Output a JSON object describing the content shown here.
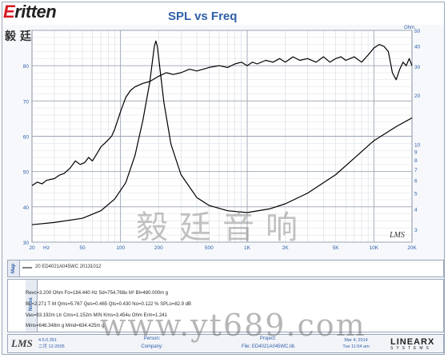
{
  "logo": {
    "brand_first": "E",
    "brand_rest": "ritten",
    "chinese": "毅廷音响"
  },
  "chart_data": {
    "type": "line",
    "title": "SPL vs Freq",
    "x_scale": "log",
    "xlim": [
      20,
      20000
    ],
    "x_ticks": [
      {
        "value": 20,
        "label": "20"
      },
      {
        "value": 50,
        "label": "50"
      },
      {
        "value": 100,
        "label": "100"
      },
      {
        "value": 200,
        "label": "200"
      },
      {
        "value": 500,
        "label": "500"
      },
      {
        "value": 1000,
        "label": "1K"
      },
      {
        "value": 2000,
        "label": "2K"
      },
      {
        "value": 5000,
        "label": "5K"
      },
      {
        "value": 10000,
        "label": "10K"
      },
      {
        "value": 20000,
        "label": "20K"
      }
    ],
    "x_axis_unit": "Hz",
    "left_axis": {
      "min": 30,
      "max": 90,
      "ticks": [
        30,
        40,
        50,
        60,
        70,
        80
      ]
    },
    "right_axis": {
      "unit": "Ohm",
      "ticks": [
        {
          "value": 50,
          "label": "50"
        },
        {
          "value": 40,
          "label": "40"
        },
        {
          "value": 30,
          "label": "30"
        },
        {
          "value": 20,
          "label": "20"
        },
        {
          "value": 10,
          "label": "10"
        },
        {
          "value": 9,
          "label": "9"
        },
        {
          "value": 8,
          "label": "8"
        },
        {
          "value": 7,
          "label": "7"
        },
        {
          "value": 6,
          "label": "6"
        },
        {
          "value": 5,
          "label": "5"
        },
        {
          "value": 4,
          "label": "4"
        },
        {
          "value": 3,
          "label": "3"
        }
      ],
      "min": 2.5,
      "max": 50
    },
    "grid": true,
    "watermark_label": "LMS",
    "series": [
      {
        "axis": "left",
        "color": "#000000",
        "points": [
          [
            20,
            46
          ],
          [
            22,
            47
          ],
          [
            24,
            46.5
          ],
          [
            26,
            47.5
          ],
          [
            30,
            48
          ],
          [
            33,
            49
          ],
          [
            36,
            49.5
          ],
          [
            40,
            51
          ],
          [
            44,
            53
          ],
          [
            48,
            52
          ],
          [
            52,
            52.5
          ],
          [
            56,
            54
          ],
          [
            60,
            53
          ],
          [
            65,
            55
          ],
          [
            70,
            57
          ],
          [
            75,
            58
          ],
          [
            80,
            59
          ],
          [
            85,
            60
          ],
          [
            90,
            62
          ],
          [
            100,
            67
          ],
          [
            110,
            71
          ],
          [
            120,
            73
          ],
          [
            130,
            74
          ],
          [
            150,
            75
          ],
          [
            170,
            75.5
          ],
          [
            200,
            77
          ],
          [
            230,
            78
          ],
          [
            260,
            77.5
          ],
          [
            300,
            78
          ],
          [
            350,
            79
          ],
          [
            400,
            78.5
          ],
          [
            450,
            79
          ],
          [
            500,
            79.5
          ],
          [
            600,
            80
          ],
          [
            700,
            79.5
          ],
          [
            800,
            80.5
          ],
          [
            900,
            81
          ],
          [
            1000,
            80
          ],
          [
            1100,
            81
          ],
          [
            1200,
            80.5
          ],
          [
            1400,
            81.5
          ],
          [
            1600,
            81
          ],
          [
            1800,
            82
          ],
          [
            2000,
            81
          ],
          [
            2300,
            82.5
          ],
          [
            2600,
            81.5
          ],
          [
            3000,
            82
          ],
          [
            3500,
            81
          ],
          [
            4000,
            82.5
          ],
          [
            4500,
            81
          ],
          [
            5000,
            82
          ],
          [
            5500,
            82.5
          ],
          [
            6000,
            81.5
          ],
          [
            6500,
            82
          ],
          [
            7000,
            82.5
          ],
          [
            8000,
            81
          ],
          [
            9000,
            83
          ],
          [
            10000,
            85
          ],
          [
            11000,
            86
          ],
          [
            12000,
            85.5
          ],
          [
            13000,
            84
          ],
          [
            14000,
            78
          ],
          [
            15000,
            76
          ],
          [
            16000,
            79
          ],
          [
            17000,
            81
          ],
          [
            18000,
            80
          ],
          [
            19000,
            82
          ],
          [
            20000,
            80
          ]
        ]
      },
      {
        "axis": "right",
        "color": "#000000",
        "points": [
          [
            20,
            3.2
          ],
          [
            30,
            3.3
          ],
          [
            50,
            3.5
          ],
          [
            70,
            3.9
          ],
          [
            90,
            4.6
          ],
          [
            110,
            5.8
          ],
          [
            130,
            8.5
          ],
          [
            150,
            14
          ],
          [
            170,
            24
          ],
          [
            180,
            34
          ],
          [
            185,
            40
          ],
          [
            190,
            43
          ],
          [
            195,
            40
          ],
          [
            200,
            34
          ],
          [
            220,
            18
          ],
          [
            250,
            10
          ],
          [
            300,
            6.5
          ],
          [
            400,
            4.7
          ],
          [
            500,
            4.2
          ],
          [
            700,
            3.9
          ],
          [
            1000,
            3.8
          ],
          [
            1500,
            4.0
          ],
          [
            2000,
            4.3
          ],
          [
            3000,
            5.0
          ],
          [
            5000,
            6.5
          ],
          [
            7000,
            8.2
          ],
          [
            10000,
            10.5
          ],
          [
            15000,
            12.8
          ],
          [
            20000,
            14.5
          ]
        ]
      }
    ]
  },
  "map": {
    "label": "Map",
    "legend": "20  ED4021A045WC  20131012"
  },
  "notes": {
    "label": "Notes",
    "lines": [
      "Revc=3.200 Ohm  Fo=184.440 Hz  Sd=754.768u M²  Bl=480.000m g",
      "BL=2.271 T·M  Qms=5.767  Qes=0.465  Qts=0.430  No=0.122 %  SPLo=82.9 dB",
      "Vas=93.192m Ltr  Cms=1.152m M/N  Kms=3.454u Ohm  Erm=1.241",
      "Mms=646.348m g  Mmd=634.425m g"
    ]
  },
  "footer": {
    "app": "LMS",
    "version": "4.5.0.351",
    "version_date": "二月 12-2005",
    "person_label": "Person:",
    "company_label": "Company:",
    "project_label": "Project:",
    "file_label": "File: ED4021A045WC.lib",
    "date": "Mar 4, 2014",
    "time": "Tue 11:54 am",
    "brand": "LINEARX",
    "brand_sub": "SYSTEMS"
  },
  "watermarks": {
    "cn": "毅廷音响",
    "url": "www.yt689.com"
  }
}
